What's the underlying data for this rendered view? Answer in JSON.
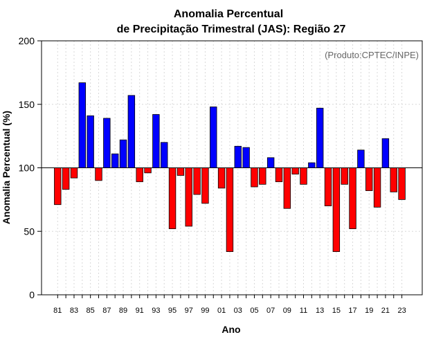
{
  "chart_data": {
    "type": "bar",
    "title_line1": "Anomalia Percentual",
    "title_line2": "de Precipitação Trimestral (JAS): Região 27",
    "xlabel": "Ano",
    "ylabel": "Anomalia Percentual (%)",
    "credit": "(Produto:CPTEC/INPE)",
    "ylim": [
      0,
      200
    ],
    "yticks": [
      0,
      50,
      100,
      150,
      200
    ],
    "baseline": 100,
    "grid": true,
    "colors": {
      "above": "#0000ff",
      "below": "#ff0000",
      "edge": "#000000",
      "grid": "#d8d8d8"
    },
    "categories": [
      "1981",
      "1982",
      "1983",
      "1984",
      "1985",
      "1986",
      "1987",
      "1988",
      "1989",
      "1990",
      "1991",
      "1992",
      "1993",
      "1994",
      "1995",
      "1996",
      "1997",
      "1998",
      "1999",
      "2000",
      "2001",
      "2002",
      "2003",
      "2004",
      "2005",
      "2006",
      "2007",
      "2008",
      "2009",
      "2010",
      "2011",
      "2012",
      "2013",
      "2014",
      "2015",
      "2016",
      "2017",
      "2018",
      "2019",
      "2020",
      "2021",
      "2022",
      "2023"
    ],
    "xtick_labels": [
      "81",
      "83",
      "85",
      "87",
      "89",
      "91",
      "93",
      "95",
      "97",
      "99",
      "01",
      "03",
      "05",
      "07",
      "09",
      "11",
      "13",
      "15",
      "17",
      "19",
      "21",
      "23"
    ],
    "values": [
      71,
      83,
      92,
      167,
      141,
      90,
      139,
      111,
      122,
      157,
      89,
      96,
      142,
      120,
      52,
      94,
      54,
      79,
      72,
      148,
      84,
      34,
      117,
      116,
      85,
      87,
      108,
      89,
      68,
      95,
      87,
      104,
      147,
      70,
      34,
      87,
      52,
      114,
      82,
      69,
      123,
      81,
      75
    ]
  }
}
